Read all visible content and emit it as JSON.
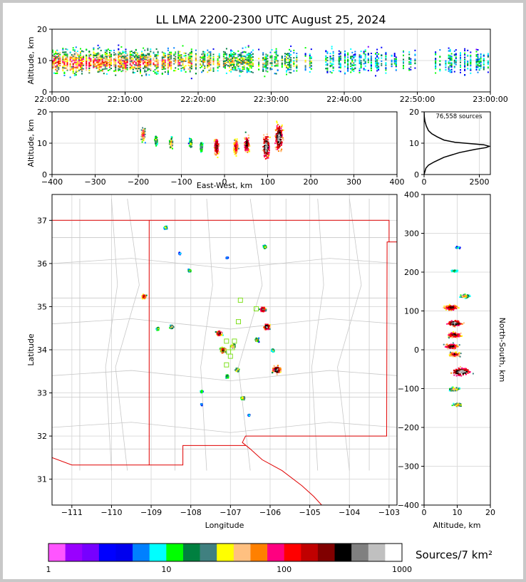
{
  "title": "LL LMA 2200-2300 UTC August 25, 2024",
  "colors": {
    "scale": [
      "#ff55ff",
      "#9900ff",
      "#7700ff",
      "#0000ff",
      "#0000ee",
      "#0080ff",
      "#00ffff",
      "#00ff00",
      "#008040",
      "#408080",
      "#ffff00",
      "#ffc080",
      "#ff8000",
      "#ff0080",
      "#ff0000",
      "#c00000",
      "#800000",
      "#000000",
      "#808080",
      "#c0c0c0",
      "#ffffff"
    ],
    "border_state": "#e00000",
    "county": "#c8c8c8",
    "station": "#80e020"
  },
  "chart_data": [
    {
      "id": "time_height",
      "type": "heatmap",
      "ylabel": "Altitude, km",
      "xlim": [
        "22:00:00",
        "23:00:00"
      ],
      "ylim": [
        0,
        20
      ],
      "x_ticks": [
        "22:00:00",
        "22:10:00",
        "22:20:00",
        "22:30:00",
        "22:40:00",
        "22:50:00",
        "23:00:00"
      ],
      "y_ticks": [
        0,
        10,
        20
      ],
      "activity": [
        {
          "minute": 0,
          "density": 0.9
        },
        {
          "minute": 10,
          "density": 0.85
        },
        {
          "minute": 20,
          "density": 0.75
        },
        {
          "minute": 30,
          "density": 0.6
        },
        {
          "minute": 40,
          "density": 0.45
        },
        {
          "minute": 50,
          "density": 0.4
        },
        {
          "minute": 60,
          "density": 0.45
        }
      ],
      "core_altitude": [
        5,
        15
      ]
    },
    {
      "id": "ew_height",
      "type": "heatmap",
      "xlabel": "East-West, km",
      "ylabel": "Altitude, km",
      "xlim": [
        -400,
        400
      ],
      "ylim": [
        0,
        20
      ],
      "x_ticks": [
        -400,
        -300,
        -200,
        -100,
        0,
        100,
        200,
        300,
        400
      ],
      "y_ticks": [
        0,
        10,
        20
      ],
      "cells": [
        {
          "x": -190,
          "z": 13,
          "size": 0.7
        },
        {
          "x": -160,
          "z": 11,
          "size": 0.5
        },
        {
          "x": -125,
          "z": 10,
          "size": 0.6
        },
        {
          "x": -80,
          "z": 10,
          "size": 0.5
        },
        {
          "x": -55,
          "z": 9,
          "size": 0.5
        },
        {
          "x": -20,
          "z": 9,
          "size": 0.9
        },
        {
          "x": 25,
          "z": 9,
          "size": 0.8
        },
        {
          "x": 50,
          "z": 10,
          "size": 0.9
        },
        {
          "x": 95,
          "z": 9,
          "size": 1.2
        },
        {
          "x": 125,
          "z": 12,
          "size": 1.3
        }
      ]
    },
    {
      "id": "altitude_histogram",
      "type": "line",
      "annotation": "76,558 sources",
      "xlim": [
        0,
        3000
      ],
      "ylim": [
        0,
        20
      ],
      "x_ticks": [
        0,
        2500
      ],
      "y_ticks": [
        0,
        10,
        20
      ],
      "points": [
        [
          0,
          0
        ],
        [
          80,
          2
        ],
        [
          200,
          3
        ],
        [
          450,
          4
        ],
        [
          900,
          5.5
        ],
        [
          1600,
          7
        ],
        [
          2300,
          8
        ],
        [
          2800,
          8.6
        ],
        [
          2950,
          9
        ],
        [
          2700,
          9.5
        ],
        [
          2000,
          9.9
        ],
        [
          1400,
          10.3
        ],
        [
          900,
          11
        ],
        [
          600,
          12
        ],
        [
          350,
          13
        ],
        [
          200,
          14
        ],
        [
          100,
          15.5
        ],
        [
          40,
          17
        ],
        [
          10,
          18.5
        ],
        [
          0,
          20
        ]
      ]
    },
    {
      "id": "plan_view",
      "type": "heatmap",
      "xlabel": "Longitude",
      "ylabel": "Latitude",
      "xlim": [
        -111.5,
        -102.8
      ],
      "ylim": [
        30.4,
        37.6
      ],
      "x_ticks": [
        -111,
        -110,
        -109,
        -108,
        -107,
        -106,
        -105,
        -104,
        -103
      ],
      "y_ticks": [
        31,
        32,
        33,
        34,
        35,
        36,
        37
      ],
      "cells": [
        {
          "lon": -109.2,
          "lat": 35.25,
          "size": 0.8
        },
        {
          "lon": -108.85,
          "lat": 34.5,
          "size": 0.5
        },
        {
          "lon": -108.5,
          "lat": 34.55,
          "size": 0.6
        },
        {
          "lon": -108.05,
          "lat": 35.85,
          "size": 0.5
        },
        {
          "lon": -108.3,
          "lat": 36.25,
          "size": 0.3
        },
        {
          "lon": -108.65,
          "lat": 36.85,
          "size": 0.5
        },
        {
          "lon": -107.3,
          "lat": 34.4,
          "size": 0.9
        },
        {
          "lon": -107.2,
          "lat": 34.0,
          "size": 0.9
        },
        {
          "lon": -106.95,
          "lat": 34.1,
          "size": 0.7
        },
        {
          "lon": -106.85,
          "lat": 33.55,
          "size": 0.6
        },
        {
          "lon": -107.1,
          "lat": 33.4,
          "size": 0.5
        },
        {
          "lon": -107.75,
          "lat": 33.05,
          "size": 0.4
        },
        {
          "lon": -106.7,
          "lat": 32.9,
          "size": 0.6
        },
        {
          "lon": -106.2,
          "lat": 34.95,
          "size": 0.9
        },
        {
          "lon": -106.1,
          "lat": 34.55,
          "size": 1.0
        },
        {
          "lon": -106.35,
          "lat": 34.25,
          "size": 0.6
        },
        {
          "lon": -105.85,
          "lat": 33.55,
          "size": 1.3
        },
        {
          "lon": -105.95,
          "lat": 34.0,
          "size": 0.5
        },
        {
          "lon": -106.15,
          "lat": 36.4,
          "size": 0.5
        },
        {
          "lon": -107.1,
          "lat": 36.15,
          "size": 0.3
        },
        {
          "lon": -107.75,
          "lat": 32.75,
          "size": 0.3
        },
        {
          "lon": -106.55,
          "lat": 32.5,
          "size": 0.3
        }
      ],
      "stations": [
        [
          -106.75,
          35.15
        ],
        [
          -106.35,
          34.95
        ],
        [
          -106.8,
          34.65
        ],
        [
          -107.1,
          34.2
        ],
        [
          -107.2,
          34.0
        ],
        [
          -107.05,
          33.95
        ],
        [
          -106.95,
          34.05
        ],
        [
          -107.0,
          33.85
        ],
        [
          -107.1,
          33.65
        ],
        [
          -106.9,
          34.2
        ]
      ]
    },
    {
      "id": "ns_height",
      "type": "heatmap",
      "xlabel": "Altitude, km",
      "ylabel": "North-South, km",
      "xlim": [
        0,
        20
      ],
      "ylim": [
        -400,
        400
      ],
      "x_ticks": [
        0,
        10,
        20
      ],
      "y_ticks": [
        -400,
        -300,
        -200,
        -100,
        0,
        100,
        200,
        300,
        400
      ],
      "cells": [
        {
          "z": 8,
          "y": 110,
          "size": 0.9
        },
        {
          "z": 9,
          "y": 70,
          "size": 1.0
        },
        {
          "z": 9,
          "y": 40,
          "size": 0.9
        },
        {
          "z": 8,
          "y": 10,
          "size": 0.9
        },
        {
          "z": 9,
          "y": -10,
          "size": 0.8
        },
        {
          "z": 11,
          "y": -55,
          "size": 1.3
        },
        {
          "z": 9,
          "y": -100,
          "size": 0.6
        },
        {
          "z": 10,
          "y": -140,
          "size": 0.6
        },
        {
          "z": 9,
          "y": 205,
          "size": 0.4
        },
        {
          "z": 12,
          "y": 140,
          "size": 0.6
        },
        {
          "z": 10,
          "y": 265,
          "size": 0.3
        }
      ]
    }
  ],
  "colorbar": {
    "label": "Sources/7 km²",
    "tick_labels": [
      "1",
      "10",
      "100",
      "1000"
    ],
    "tick_values": [
      1,
      10,
      100,
      1000
    ],
    "scale": "log"
  }
}
